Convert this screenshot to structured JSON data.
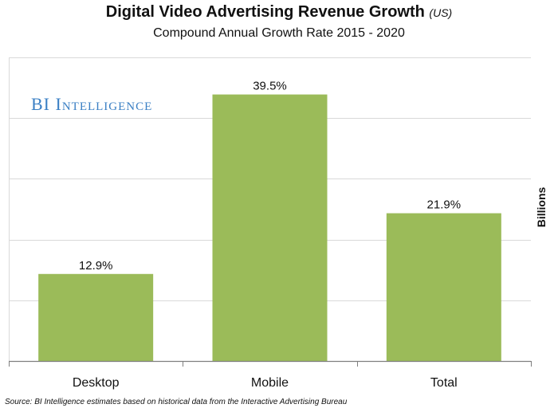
{
  "header": {
    "title": "Digital Video Advertising Revenue Growth",
    "title_qualifier": "(US)",
    "subtitle": "Compound Annual Growth Rate 2015 - 2020"
  },
  "watermark": "BI Intelligence",
  "source": "Source: BI Intelligence estimates based on historical data from the Interactive Advertising Bureau",
  "colors": {
    "bar": "#9bbb59",
    "grid": "#d9d9d9",
    "axis": "#7f7f7f"
  },
  "chart_data": {
    "type": "bar",
    "title": "Digital Video Advertising Revenue Growth (US)",
    "subtitle": "Compound Annual Growth Rate 2015 - 2020",
    "categories": [
      "Desktop",
      "Mobile",
      "Total"
    ],
    "values": [
      12.9,
      39.5,
      21.9
    ],
    "data_labels": [
      "12.9%",
      "39.5%",
      "21.9%"
    ],
    "xlabel": "",
    "ylabel": "Billions",
    "ylim": [
      0,
      45
    ],
    "grid": true,
    "legend": "none"
  }
}
